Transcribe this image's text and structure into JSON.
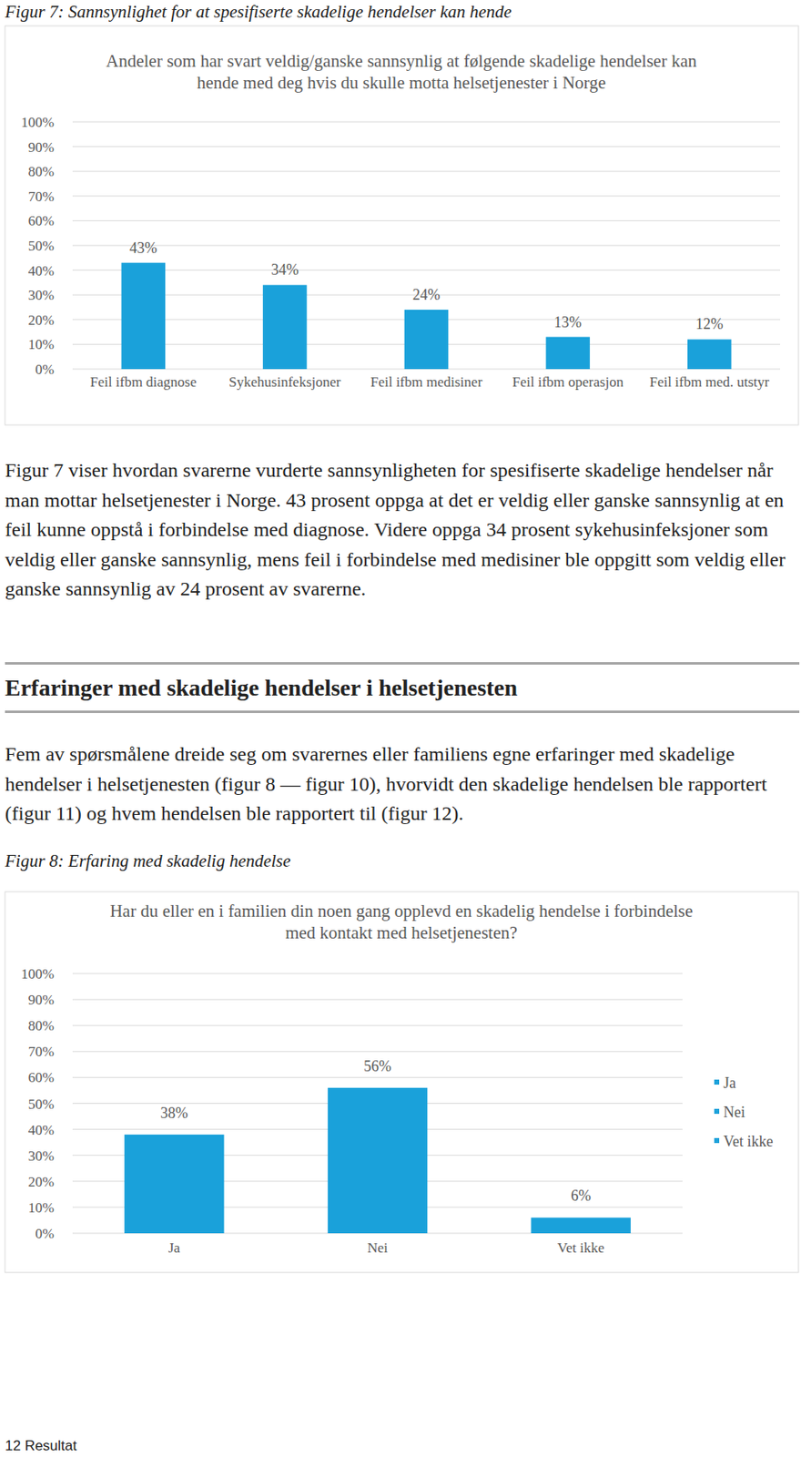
{
  "captions": [
    "Figur 7: Sannsynlighet for at spesifiserte skadelige hendelser kan hende",
    "Figur 8: Erfaring med skadelig hendelse"
  ],
  "paragraphs": [
    "Figur 7 viser hvordan svarerne vurderte sannsynligheten for spesifiserte skadelige hendelser når man mottar helsetjenester i Norge. 43 prosent oppga at det er veldig eller ganske sannsynlig at en feil kunne oppstå i forbindelse med diagnose. Videre oppga 34 prosent sykehusinfeksjoner som veldig eller ganske sannsynlig, mens feil i forbindelse med medisiner ble oppgitt som veldig eller ganske sannsynlig av 24 prosent av svarerne.",
    "Fem av spørsmålene dreide seg om svarernes eller familiens egne erfaringer med skadelige hendelser i helsetjenesten (figur 8 — figur 10), hvorvidt den skadelige hendelsen ble rapportert (figur 11) og hvem hendelsen ble rapportert til (figur 12)."
  ],
  "heading": "Erfaringer med skadelige hendelser i helsetjenesten",
  "footer": "12 Resultat",
  "chart_data": [
    {
      "type": "bar",
      "title": "Andeler som har svart veldig/ganske sannsynlig at følgende skadelige hendelser kan hende med deg hvis du skulle motta helsetjenester i Norge",
      "categories": [
        "Feil ifbm diagnose",
        "Sykehusinfeksjoner",
        "Feil ifbm medisiner",
        "Feil ifbm operasjon",
        "Feil ifbm med. utstyr"
      ],
      "values": [
        43,
        34,
        24,
        13,
        12
      ],
      "value_labels": [
        "43%",
        "34%",
        "24%",
        "13%",
        "12%"
      ],
      "color": "#1aa1da",
      "ylim": [
        0,
        100
      ],
      "yticks": [
        {
          "value": 0,
          "label": "0%"
        },
        {
          "value": 10,
          "label": "10%"
        },
        {
          "value": 20,
          "label": "20%"
        },
        {
          "value": 30,
          "label": "30%"
        },
        {
          "value": 40,
          "label": "40%"
        },
        {
          "value": 50,
          "label": "50%"
        },
        {
          "value": 60,
          "label": "60%"
        },
        {
          "value": 70,
          "label": "70%"
        },
        {
          "value": 80,
          "label": "80%"
        },
        {
          "value": 90,
          "label": "90%"
        },
        {
          "value": 100,
          "label": "100%"
        }
      ],
      "grid": true,
      "data_labels": true
    },
    {
      "type": "bar",
      "title": "Har du eller en i familien din noen gang opplevd en skadelig hendelse i forbindelse med kontakt med helsetjenesten?",
      "categories": [
        "Ja",
        "Nei",
        "Vet ikke"
      ],
      "values": [
        38,
        56,
        6
      ],
      "value_labels": [
        "38%",
        "56%",
        "6%"
      ],
      "color": "#1aa1da",
      "ylim": [
        0,
        100
      ],
      "yticks": [
        {
          "value": 0,
          "label": "0%"
        },
        {
          "value": 10,
          "label": "10%"
        },
        {
          "value": 20,
          "label": "20%"
        },
        {
          "value": 30,
          "label": "30%"
        },
        {
          "value": 40,
          "label": "40%"
        },
        {
          "value": 50,
          "label": "50%"
        },
        {
          "value": 60,
          "label": "60%"
        },
        {
          "value": 70,
          "label": "70%"
        },
        {
          "value": 80,
          "label": "80%"
        },
        {
          "value": 90,
          "label": "90%"
        },
        {
          "value": 100,
          "label": "100%"
        }
      ],
      "grid": true,
      "data_labels": true,
      "legend": "right"
    }
  ]
}
